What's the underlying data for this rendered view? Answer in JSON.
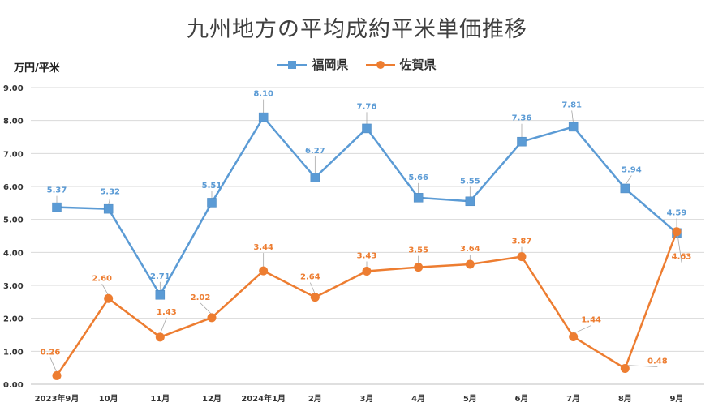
{
  "chart_data": {
    "type": "line",
    "title": "九州地方の平均成約平米単価推移",
    "ylabel": "万円/平米",
    "xlabel": "",
    "categories": [
      "2023年9月",
      "10月",
      "11月",
      "12月",
      "2024年1月",
      "2月",
      "3月",
      "4月",
      "5月",
      "6月",
      "7月",
      "8月",
      "9月"
    ],
    "ylim": [
      0,
      9
    ],
    "yticks": [
      "0.00",
      "1.00",
      "2.00",
      "3.00",
      "4.00",
      "5.00",
      "6.00",
      "7.00",
      "8.00",
      "9.00"
    ],
    "grid": true,
    "legend_position": "top-center",
    "series": [
      {
        "name": "福岡県",
        "color": "#5b9bd5",
        "marker": "square",
        "values": [
          5.37,
          5.32,
          2.71,
          5.51,
          8.1,
          6.27,
          7.76,
          5.66,
          5.55,
          7.36,
          7.81,
          5.94,
          4.59
        ],
        "labels": [
          "5.37",
          "5.32",
          "2.71",
          "5.51",
          "8.10",
          "6.27",
          "7.76",
          "5.66",
          "5.55",
          "7.36",
          "7.81",
          "5.94",
          "4.59"
        ]
      },
      {
        "name": "佐賀県",
        "color": "#ed7d31",
        "marker": "circle",
        "values": [
          0.26,
          2.6,
          1.43,
          2.02,
          3.44,
          2.64,
          3.43,
          3.55,
          3.64,
          3.87,
          1.44,
          0.48,
          4.63
        ],
        "labels": [
          "0.26",
          "2.60",
          "1.43",
          "2.02",
          "3.44",
          "2.64",
          "3.43",
          "3.55",
          "3.64",
          "3.87",
          "1.44",
          "0.48",
          "4.63"
        ]
      }
    ]
  }
}
